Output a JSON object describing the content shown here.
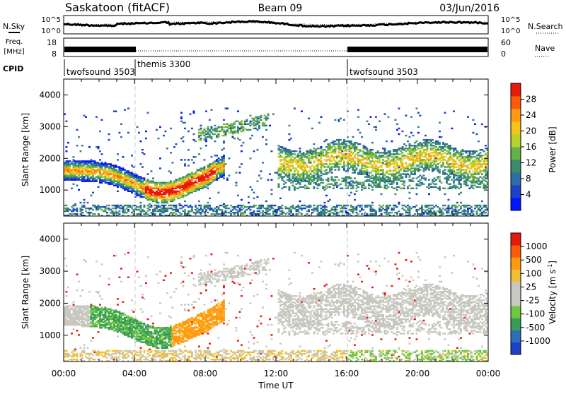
{
  "header": {
    "left": "Saskatoon (fitACF)",
    "center": "Beam 09",
    "right": "03/Jun/2016"
  },
  "noise_panel": {
    "left_label": "N.Sky",
    "right_label": "N.Search",
    "left_ticks": [
      "10^5",
      "10^0"
    ],
    "right_ticks": [
      "10^5",
      "10^0"
    ]
  },
  "freq_panel": {
    "left_label_line1": "Freq.",
    "left_label_line2": "[MHz]",
    "right_label": "Nave",
    "left_ticks": [
      "18",
      "8"
    ],
    "right_ticks": [
      "60",
      "0"
    ]
  },
  "cpid_panel": {
    "label": "CPID",
    "segments": [
      {
        "name": "twofsound 3503",
        "start": 0,
        "end": 4
      },
      {
        "name": "themis 3300",
        "start": 4,
        "end": 16
      },
      {
        "name": "twofsound 3503",
        "start": 16,
        "end": 24
      }
    ]
  },
  "time_axis": {
    "label": "Time UT",
    "ticks": [
      "00:00",
      "04:00",
      "08:00",
      "12:00",
      "16:00",
      "20:00",
      "00:00"
    ]
  },
  "chart_data": [
    {
      "type": "heatmap",
      "title": "Power",
      "ylabel": "Slant Range [km]",
      "xlabel": "Time UT",
      "xlim": [
        0,
        24
      ],
      "ylim": [
        180,
        4500
      ],
      "yticks": [
        "1000",
        "2000",
        "3000",
        "4000"
      ],
      "colorbar": {
        "label": "Power [dB]",
        "ticks": [
          "4",
          "8",
          "12",
          "16",
          "20",
          "24",
          "28"
        ],
        "colors": [
          "#0016ff",
          "#1e3fc8",
          "#2d6ea6",
          "#3b8b6a",
          "#63b04d",
          "#b8d22a",
          "#f7c419",
          "#ff9a12",
          "#ff5a0c",
          "#e51a07"
        ]
      },
      "features": [
        {
          "name": "main-echo-band",
          "range_km_start": 1600,
          "range_km_end": 1500,
          "time_start": 0,
          "time_end": 9,
          "dip_km": 800,
          "dip_time": 5.5
        },
        {
          "name": "morning-high-range",
          "time_start": 7.5,
          "time_end": 11.5,
          "range_km_start": 2800,
          "range_km_end": 3200
        },
        {
          "name": "afternoon-band",
          "time_start": 12,
          "time_end": 24,
          "range_km": 1800
        }
      ]
    },
    {
      "type": "heatmap",
      "title": "Velocity",
      "ylabel": "Slant Range [km]",
      "xlabel": "Time UT",
      "xlim": [
        0,
        24
      ],
      "ylim": [
        180,
        4500
      ],
      "yticks": [
        "1000",
        "2000",
        "3000",
        "4000"
      ],
      "colorbar": {
        "label": "Velocity [m s-1]",
        "label_main": "Velocity [m s",
        "label_sup": "-1",
        "label_close": "]",
        "ticks": [
          "1000",
          "500",
          "100",
          "25",
          "-25",
          "-100",
          "-500",
          "-1000"
        ],
        "colors": [
          "#2040c8",
          "#2e6fb8",
          "#3a9c5a",
          "#6fc840",
          "#c8c8c0",
          "#c8c8c0",
          "#f0c030",
          "#ff9a12",
          "#ff5a0c",
          "#e51a07"
        ]
      },
      "features": [
        {
          "name": "ground-scatter",
          "color": "grey",
          "time_start": 0,
          "time_end": 24
        },
        {
          "name": "green-patch",
          "time_start": 1.5,
          "time_end": 7,
          "range_km": 1300
        },
        {
          "name": "orange-patch",
          "time_start": 6,
          "time_end": 9.5,
          "range_km": 1500
        }
      ]
    }
  ]
}
